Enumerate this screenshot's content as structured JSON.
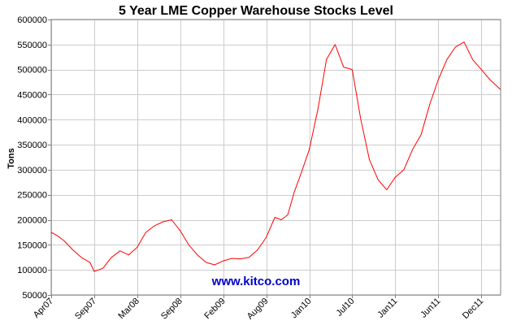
{
  "chart_data": {
    "type": "line",
    "title": "5 Year LME Copper Warehouse Stocks Level",
    "ylabel": "Tons",
    "xlabel": "",
    "ylim": [
      50000,
      600000
    ],
    "yticks": [
      50000,
      100000,
      150000,
      200000,
      250000,
      300000,
      350000,
      400000,
      450000,
      500000,
      550000,
      600000
    ],
    "xticks": [
      "Apr07",
      "Sep07",
      "Mar08",
      "Sep08",
      "Feb09",
      "Aug09",
      "Jan10",
      "Jul10",
      "Jan11",
      "Jun11",
      "Dec11"
    ],
    "grid": true,
    "watermark": "www.kitco.com",
    "line_color": "#ff0000",
    "watermark_color": "#0000cc",
    "series": [
      {
        "x": [
          0,
          0.15,
          0.3,
          0.5,
          0.7,
          0.9,
          1.0,
          1.2,
          1.4,
          1.6,
          1.8,
          2.0,
          2.2,
          2.4,
          2.6,
          2.8,
          3.0,
          3.2,
          3.4,
          3.6,
          3.8,
          4.0,
          4.2,
          4.4,
          4.6,
          4.8,
          5.0,
          5.2,
          5.35,
          5.5,
          5.65,
          5.8,
          6.0,
          6.2,
          6.4,
          6.6,
          6.8,
          7.0,
          7.2,
          7.4,
          7.6,
          7.8,
          8.0,
          8.2,
          8.4,
          8.6,
          8.8,
          9.0,
          9.2,
          9.4,
          9.6,
          9.8,
          10.0,
          10.2,
          10.45
        ],
        "y": [
          175000,
          168000,
          158000,
          140000,
          125000,
          115000,
          97000,
          103000,
          125000,
          138000,
          130000,
          145000,
          175000,
          188000,
          196000,
          200000,
          178000,
          150000,
          130000,
          115000,
          110000,
          118000,
          123000,
          122000,
          125000,
          140000,
          165000,
          205000,
          200000,
          210000,
          255000,
          290000,
          340000,
          420000,
          520000,
          550000,
          505000,
          500000,
          400000,
          320000,
          280000,
          260000,
          285000,
          300000,
          340000,
          370000,
          430000,
          480000,
          520000,
          545000,
          555000,
          520000,
          500000,
          480000,
          460000
        ]
      }
    ],
    "x_tick_positions": [
      0,
      1,
      2,
      3,
      4,
      5,
      6,
      7,
      8,
      9,
      10
    ]
  }
}
